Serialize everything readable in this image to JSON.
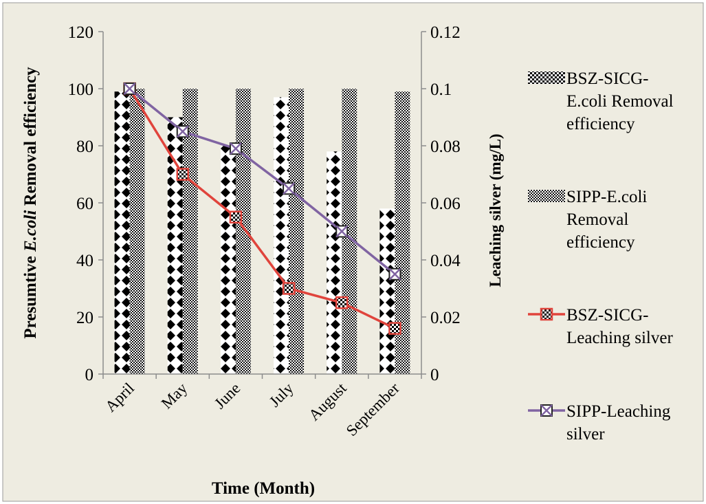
{
  "chart_data": {
    "type": "bar",
    "categories": [
      "April",
      "May",
      "June",
      "July",
      "August",
      "September"
    ],
    "xlabel": "Time (Month)",
    "ylabel_prefix": "Presumtive ",
    "ylabel_italic": "E.coli",
    "ylabel_suffix": " Removal efficiency",
    "y2label": "Leaching silver (mg/L)",
    "ylim": [
      0,
      120
    ],
    "y2lim": [
      0,
      0.12
    ],
    "y_ticks": [
      "0",
      "20",
      "40",
      "60",
      "80",
      "100",
      "120"
    ],
    "y2_ticks": [
      "0",
      "0.02",
      "0.04",
      "0.06",
      "0.08",
      "0.1",
      "0.12"
    ],
    "legend_position": "right",
    "bar_series": [
      {
        "name": "BSZ-SICG-E.coli Removal efficiency",
        "legend_lines": [
          "BSZ-SICG-",
          "E.coli Removal",
          "efficiency"
        ],
        "values": [
          99,
          90,
          80,
          97,
          78,
          58
        ]
      },
      {
        "name": "SIPP-E.coli Removal efficiency",
        "legend_lines": [
          "SIPP-E.coli",
          "Removal",
          "efficiency"
        ],
        "values": [
          100,
          100,
          100,
          100,
          100,
          99
        ]
      }
    ],
    "line_series": [
      {
        "name": "BSZ-SICG-Leaching silver",
        "legend_lines": [
          "BSZ-SICG-",
          "Leaching silver"
        ],
        "color": "#e0443c",
        "axis": "right",
        "values": [
          0.1,
          0.07,
          0.055,
          0.03,
          0.025,
          0.016
        ]
      },
      {
        "name": "SIPP-Leaching silver",
        "legend_lines": [
          "SIPP-Leaching",
          "silver"
        ],
        "color": "#8064a2",
        "axis": "right",
        "values": [
          0.1,
          0.085,
          0.079,
          0.065,
          0.05,
          0.035
        ]
      }
    ]
  }
}
